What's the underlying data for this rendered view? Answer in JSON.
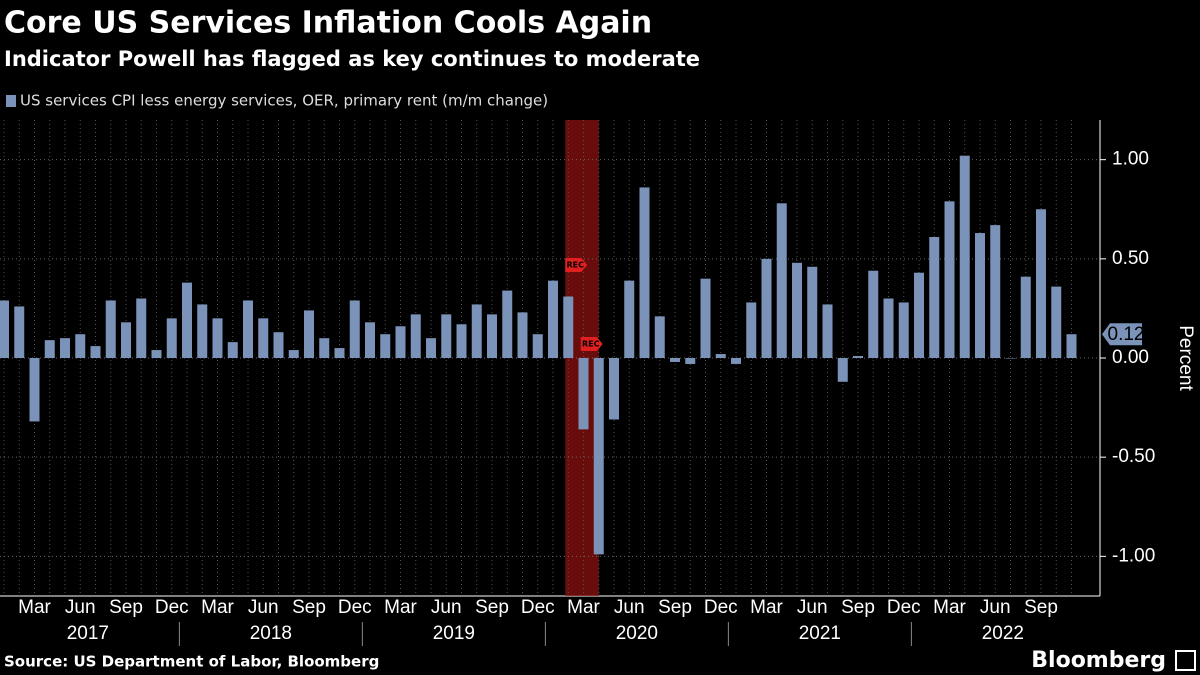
{
  "chart_data": {
    "type": "bar",
    "title": "Core US Services Inflation Cools Again",
    "subtitle": "Indicator Powell has flagged as key continues to moderate",
    "series": [
      {
        "name": "US services CPI less energy services, OER, primary rent (m/m change)",
        "color": "#7b93b9",
        "values": [
          0.29,
          0.26,
          -0.32,
          0.09,
          0.1,
          0.12,
          0.06,
          0.29,
          0.18,
          0.3,
          0.04,
          0.2,
          0.38,
          0.27,
          0.2,
          0.08,
          0.29,
          0.2,
          0.13,
          0.04,
          0.24,
          0.1,
          0.05,
          0.29,
          0.18,
          0.12,
          0.16,
          0.22,
          0.1,
          0.22,
          0.17,
          0.27,
          0.22,
          0.34,
          0.23,
          0.12,
          0.39,
          0.31,
          -0.36,
          -0.99,
          -0.31,
          0.39,
          0.86,
          0.21,
          -0.02,
          -0.03,
          0.4,
          0.02,
          -0.03,
          0.28,
          0.5,
          0.78,
          0.48,
          0.46,
          0.27,
          -0.12,
          0.01,
          0.44,
          0.3,
          0.28,
          0.43,
          0.61,
          0.79,
          1.02,
          0.63,
          0.67,
          0.0,
          0.41,
          0.75,
          0.36,
          0.12
        ]
      }
    ],
    "categories": [
      null,
      null,
      "Mar",
      null,
      null,
      "Jun",
      null,
      null,
      "Sep",
      null,
      null,
      "Dec",
      null,
      null,
      "Mar",
      null,
      null,
      "Jun",
      null,
      null,
      "Sep",
      null,
      null,
      "Dec",
      null,
      null,
      "Mar",
      null,
      null,
      "Jun",
      null,
      null,
      "Sep",
      null,
      null,
      "Dec",
      null,
      null,
      "Mar",
      null,
      null,
      "Jun",
      null,
      null,
      "Sep",
      null,
      null,
      "Dec",
      null,
      null,
      "Mar",
      null,
      null,
      "Jun",
      null,
      null,
      "Sep",
      null,
      null,
      "Dec",
      null,
      null,
      "Mar",
      null,
      null,
      "Jun",
      null,
      null,
      "Sep",
      null,
      null
    ],
    "years": [
      "2017",
      "2018",
      "2019",
      "2020",
      "2021",
      "2022"
    ],
    "recession": {
      "label": "REC",
      "start": 37,
      "end": 39
    },
    "ylabel": "Percent",
    "ylim": [
      -1.2,
      1.2
    ],
    "yticks": [
      {
        "value": -1,
        "label": "-1.00"
      },
      {
        "value": -0.5,
        "label": "-0.50"
      },
      {
        "value": 0,
        "label": "0.00"
      },
      {
        "value": 0.5,
        "label": "0.50"
      },
      {
        "value": 1,
        "label": "1.00"
      }
    ],
    "grid": true,
    "source": "Source: US Department of Labor, Bloomberg",
    "brand": "Bloomberg"
  }
}
